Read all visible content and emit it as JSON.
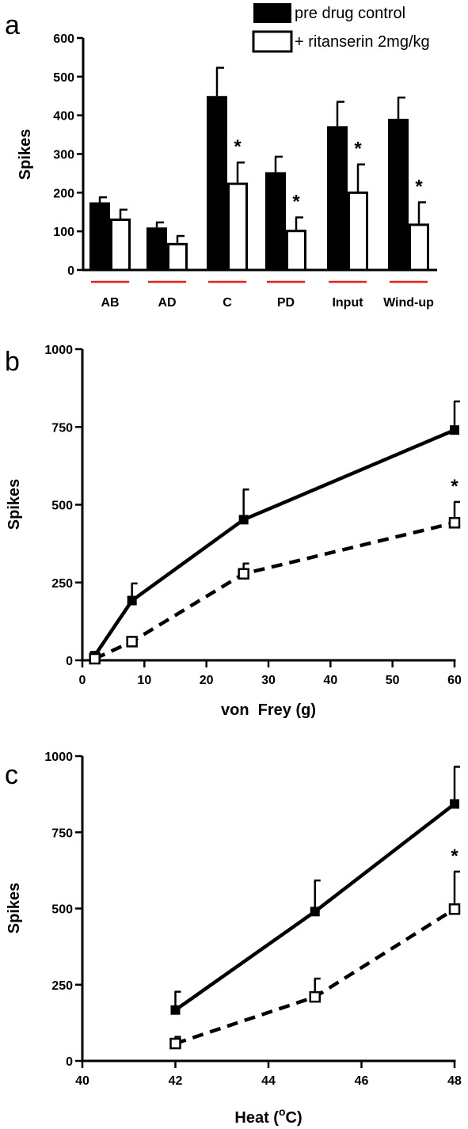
{
  "legend": {
    "items": [
      {
        "label": "pre drug control",
        "style": "filled"
      },
      {
        "label": "+ ritanserin 2mg/kg",
        "style": "open"
      }
    ]
  },
  "colors": {
    "filled": "#000000",
    "open": "#ffffff",
    "underline": "#e8201b"
  },
  "chart_data": [
    {
      "panel": "a",
      "type": "bar",
      "ylabel": "Spikes",
      "xlabel": "",
      "ylim": [
        0,
        600
      ],
      "yticks": [
        0,
        100,
        200,
        300,
        400,
        500,
        600
      ],
      "categories": [
        "AB",
        "AD",
        "C",
        "PD",
        "Input",
        "Wind-up"
      ],
      "series": [
        {
          "name": "pre drug control",
          "values": [
            175,
            110,
            450,
            253,
            372,
            391
          ],
          "errors": [
            13,
            13,
            73,
            40,
            63,
            55
          ]
        },
        {
          "name": "+ ritanserin 2mg/kg",
          "values": [
            133,
            70,
            226,
            104,
            203,
            120
          ],
          "errors": [
            23,
            18,
            52,
            32,
            70,
            55
          ]
        }
      ],
      "annotations": [
        {
          "category": "C",
          "text": "*"
        },
        {
          "category": "PD",
          "text": "*"
        },
        {
          "category": "Input",
          "text": "*"
        },
        {
          "category": "Wind-up",
          "text": "*"
        }
      ],
      "grid": false,
      "legend_position": "top-right"
    },
    {
      "panel": "b",
      "type": "line",
      "ylabel": "Spikes",
      "xlabel": "von  Frey (g)",
      "xlim": [
        0,
        60
      ],
      "ylim": [
        0,
        1000
      ],
      "xticks": [
        0,
        10,
        20,
        30,
        40,
        50,
        60
      ],
      "yticks": [
        0,
        250,
        500,
        750,
        1000
      ],
      "x": [
        2,
        8,
        26,
        60
      ],
      "series": [
        {
          "name": "pre drug control",
          "values": [
            15,
            192,
            452,
            740
          ],
          "errors": [
            8,
            55,
            97,
            92
          ]
        },
        {
          "name": "+ ritanserin 2mg/kg",
          "values": [
            5,
            60,
            278,
            442
          ],
          "errors": [
            4,
            8,
            33,
            67
          ]
        }
      ],
      "annotations": [
        {
          "x": 60,
          "text": "*"
        }
      ],
      "grid": false
    },
    {
      "panel": "c",
      "type": "line",
      "ylabel": "Spikes",
      "xlabel": "Heat (",
      "xlabel_sup": "o",
      "xlabel_tail": "C)",
      "xlim": [
        40,
        48
      ],
      "ylim": [
        0,
        1000
      ],
      "xticks": [
        40,
        42,
        44,
        46,
        48
      ],
      "yticks": [
        0,
        250,
        500,
        750,
        1000
      ],
      "x": [
        42,
        45,
        48
      ],
      "series": [
        {
          "name": "pre drug control",
          "values": [
            167,
            490,
            843
          ],
          "errors": [
            60,
            102,
            122
          ]
        },
        {
          "name": "+ ritanserin 2mg/kg",
          "values": [
            57,
            210,
            498
          ],
          "errors": [
            22,
            60,
            123
          ]
        }
      ],
      "annotations": [
        {
          "x": 48,
          "text": "*"
        }
      ],
      "grid": false
    }
  ]
}
